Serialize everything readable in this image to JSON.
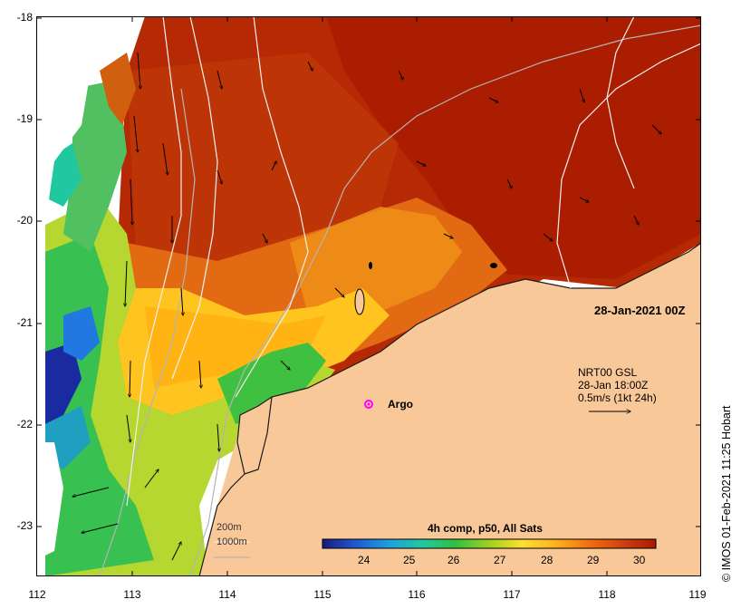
{
  "map": {
    "lat_ticks": [
      "-18",
      "-19",
      "-20",
      "-21",
      "-22",
      "-23"
    ],
    "lon_ticks": [
      "112",
      "113",
      "114",
      "115",
      "116",
      "117",
      "118",
      "119"
    ],
    "date_label": "28-Jan-2021 00Z",
    "current_info": [
      "NRT00 GSL",
      "28-Jan 18:00Z",
      "0.5m/s (1kt 24h)"
    ],
    "argo_label": "Argo",
    "depth_contours": [
      "200m",
      "1000m"
    ],
    "colorbar": {
      "title": "4h comp, p50, All Sats",
      "ticks": [
        "24",
        "25",
        "26",
        "27",
        "28",
        "29",
        "30"
      ],
      "colors": [
        "#1a1a80",
        "#1e5ad0",
        "#1fa0e0",
        "#20c8a0",
        "#30c040",
        "#a0d020",
        "#ffe030",
        "#ffb020",
        "#f07010",
        "#d04010",
        "#a81a00"
      ]
    },
    "credit": "© IMOS 01-Feb-2021 11:25 Hobart",
    "colors": {
      "land": "#f9c898",
      "warm": "#b52a04",
      "argo": "#ff00ff"
    }
  }
}
